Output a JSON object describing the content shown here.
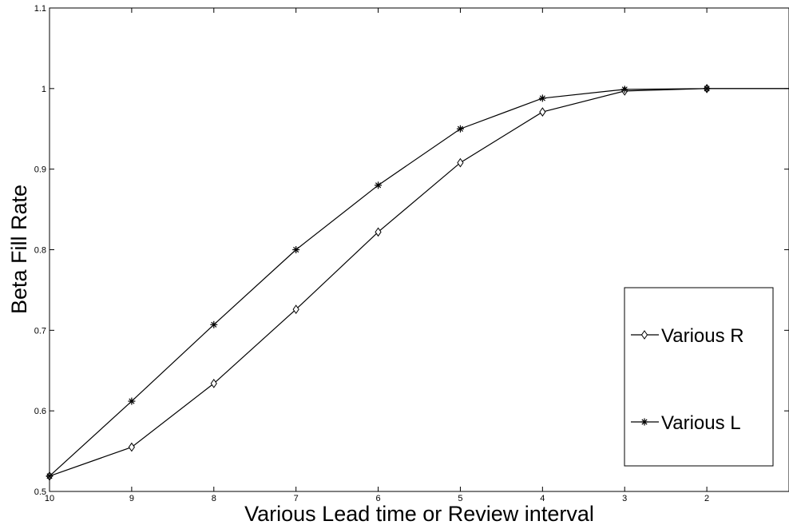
{
  "chart_data": {
    "type": "line",
    "xlabel": "Various Lead time or Review interval",
    "ylabel": "Beta Fill Rate",
    "xlim": [
      10,
      1
    ],
    "ylim": [
      0.5,
      1.1
    ],
    "x_axis_reversed": true,
    "x_ticks": [
      10,
      9,
      8,
      7,
      6,
      5,
      4,
      3,
      2
    ],
    "x_tick_labels": [
      "10",
      "9",
      "8",
      "7",
      "6",
      "5",
      "4",
      "3",
      "2"
    ],
    "y_ticks": [
      0.5,
      0.6,
      0.7,
      0.8,
      0.9,
      1.0,
      1.1
    ],
    "y_tick_labels": [
      "0.5",
      "0.6",
      "0.7",
      "0.8",
      "0.9",
      "1",
      "1.1"
    ],
    "grid": false,
    "legend_position": "lower-right",
    "series": [
      {
        "name": "Various R",
        "marker": "diamond",
        "color": "#000000",
        "points": [
          [
            10,
            0.519
          ],
          [
            9,
            0.555
          ],
          [
            8,
            0.634
          ],
          [
            7,
            0.726
          ],
          [
            6,
            0.822
          ],
          [
            5,
            0.908
          ],
          [
            4,
            0.971
          ],
          [
            3,
            0.997
          ],
          [
            2,
            1.0
          ],
          [
            1,
            1.0
          ]
        ],
        "marker_x": [
          10,
          9,
          8,
          7,
          6,
          5,
          4,
          3,
          2
        ]
      },
      {
        "name": "Various L",
        "marker": "asterisk",
        "color": "#000000",
        "points": [
          [
            10,
            0.519
          ],
          [
            9,
            0.612
          ],
          [
            8,
            0.707
          ],
          [
            7,
            0.8
          ],
          [
            6,
            0.88
          ],
          [
            5,
            0.95
          ],
          [
            4,
            0.988
          ],
          [
            3,
            0.999
          ],
          [
            2,
            1.0
          ],
          [
            1,
            1.0
          ]
        ],
        "marker_x": [
          10,
          9,
          8,
          7,
          6,
          5,
          4,
          3,
          2
        ]
      }
    ]
  }
}
